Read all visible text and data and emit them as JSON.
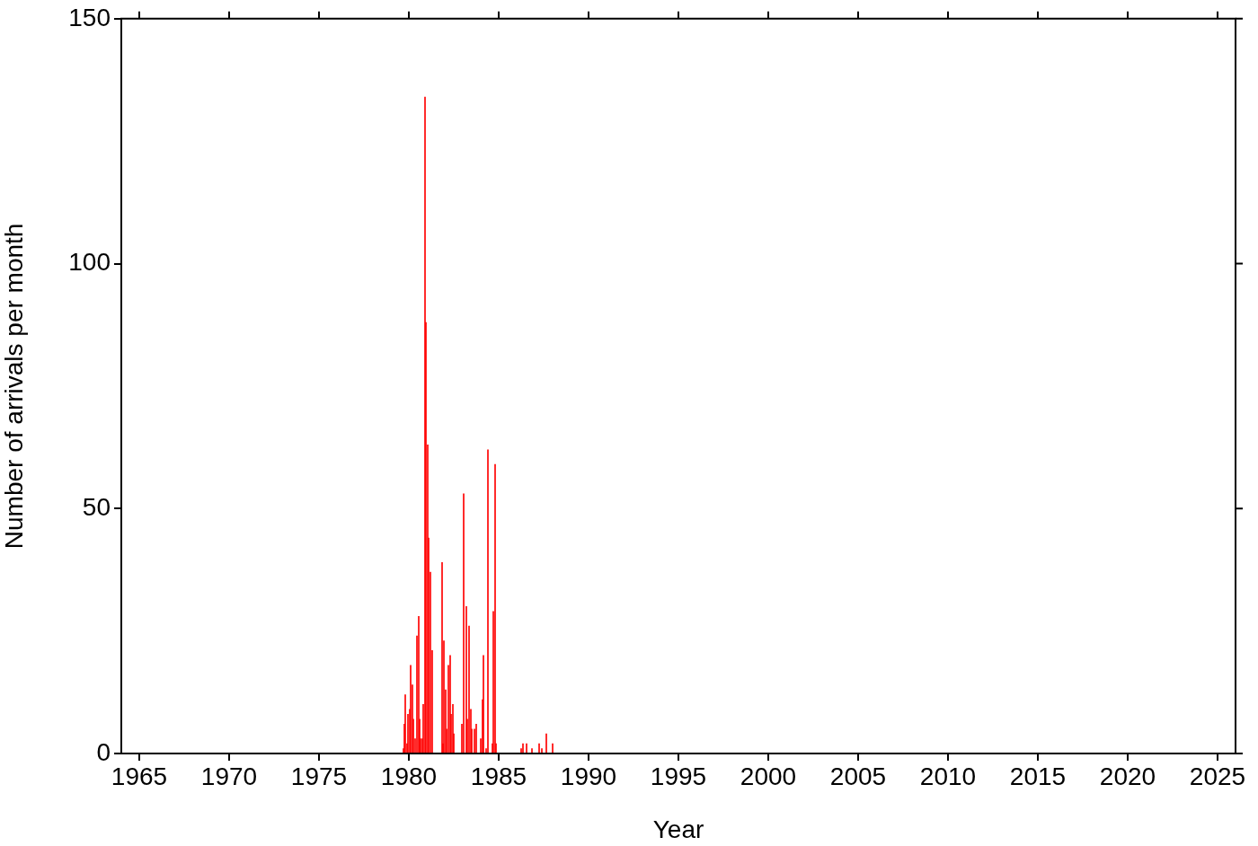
{
  "chart_data": {
    "type": "bar",
    "xlabel": "Year",
    "ylabel": "Number of arrivals per month",
    "color": "#ff0000",
    "x": [
      1979.7,
      1979.75,
      1979.8,
      1979.9,
      1979.95,
      1980.05,
      1980.1,
      1980.2,
      1980.25,
      1980.35,
      1980.45,
      1980.55,
      1980.6,
      1980.65,
      1980.75,
      1980.8,
      1980.9,
      1980.95,
      1981.05,
      1981.1,
      1981.2,
      1981.3,
      1981.85,
      1981.9,
      1981.95,
      1982.05,
      1982.1,
      1982.2,
      1982.3,
      1982.35,
      1982.45,
      1982.5,
      1982.95,
      1983.05,
      1983.2,
      1983.25,
      1983.35,
      1983.45,
      1983.5,
      1983.65,
      1983.75,
      1984.0,
      1984.1,
      1984.15,
      1984.3,
      1984.4,
      1984.65,
      1984.7,
      1984.8,
      1984.85,
      1986.25,
      1986.35,
      1986.55,
      1986.85,
      1987.25,
      1987.4,
      1987.65,
      1988.0
    ],
    "values": [
      1,
      6,
      12,
      2,
      8,
      9,
      18,
      14,
      7,
      3,
      24,
      28,
      7,
      3,
      3,
      10,
      134,
      88,
      63,
      44,
      37,
      21,
      39,
      2,
      23,
      13,
      5,
      18,
      20,
      8,
      10,
      4,
      6,
      53,
      30,
      7,
      26,
      9,
      5,
      5,
      6,
      3,
      11,
      20,
      1,
      62,
      2,
      29,
      59,
      2,
      1,
      2,
      2,
      1,
      2,
      1,
      4,
      2
    ],
    "xlim": [
      1964,
      2026
    ],
    "xticks": [
      1965,
      1970,
      1975,
      1980,
      1985,
      1990,
      1995,
      2000,
      2005,
      2010,
      2015,
      2020,
      2025
    ],
    "ylim": [
      0,
      150
    ],
    "yticks": [
      0,
      50,
      100,
      150
    ],
    "grid": false,
    "legend": false
  }
}
